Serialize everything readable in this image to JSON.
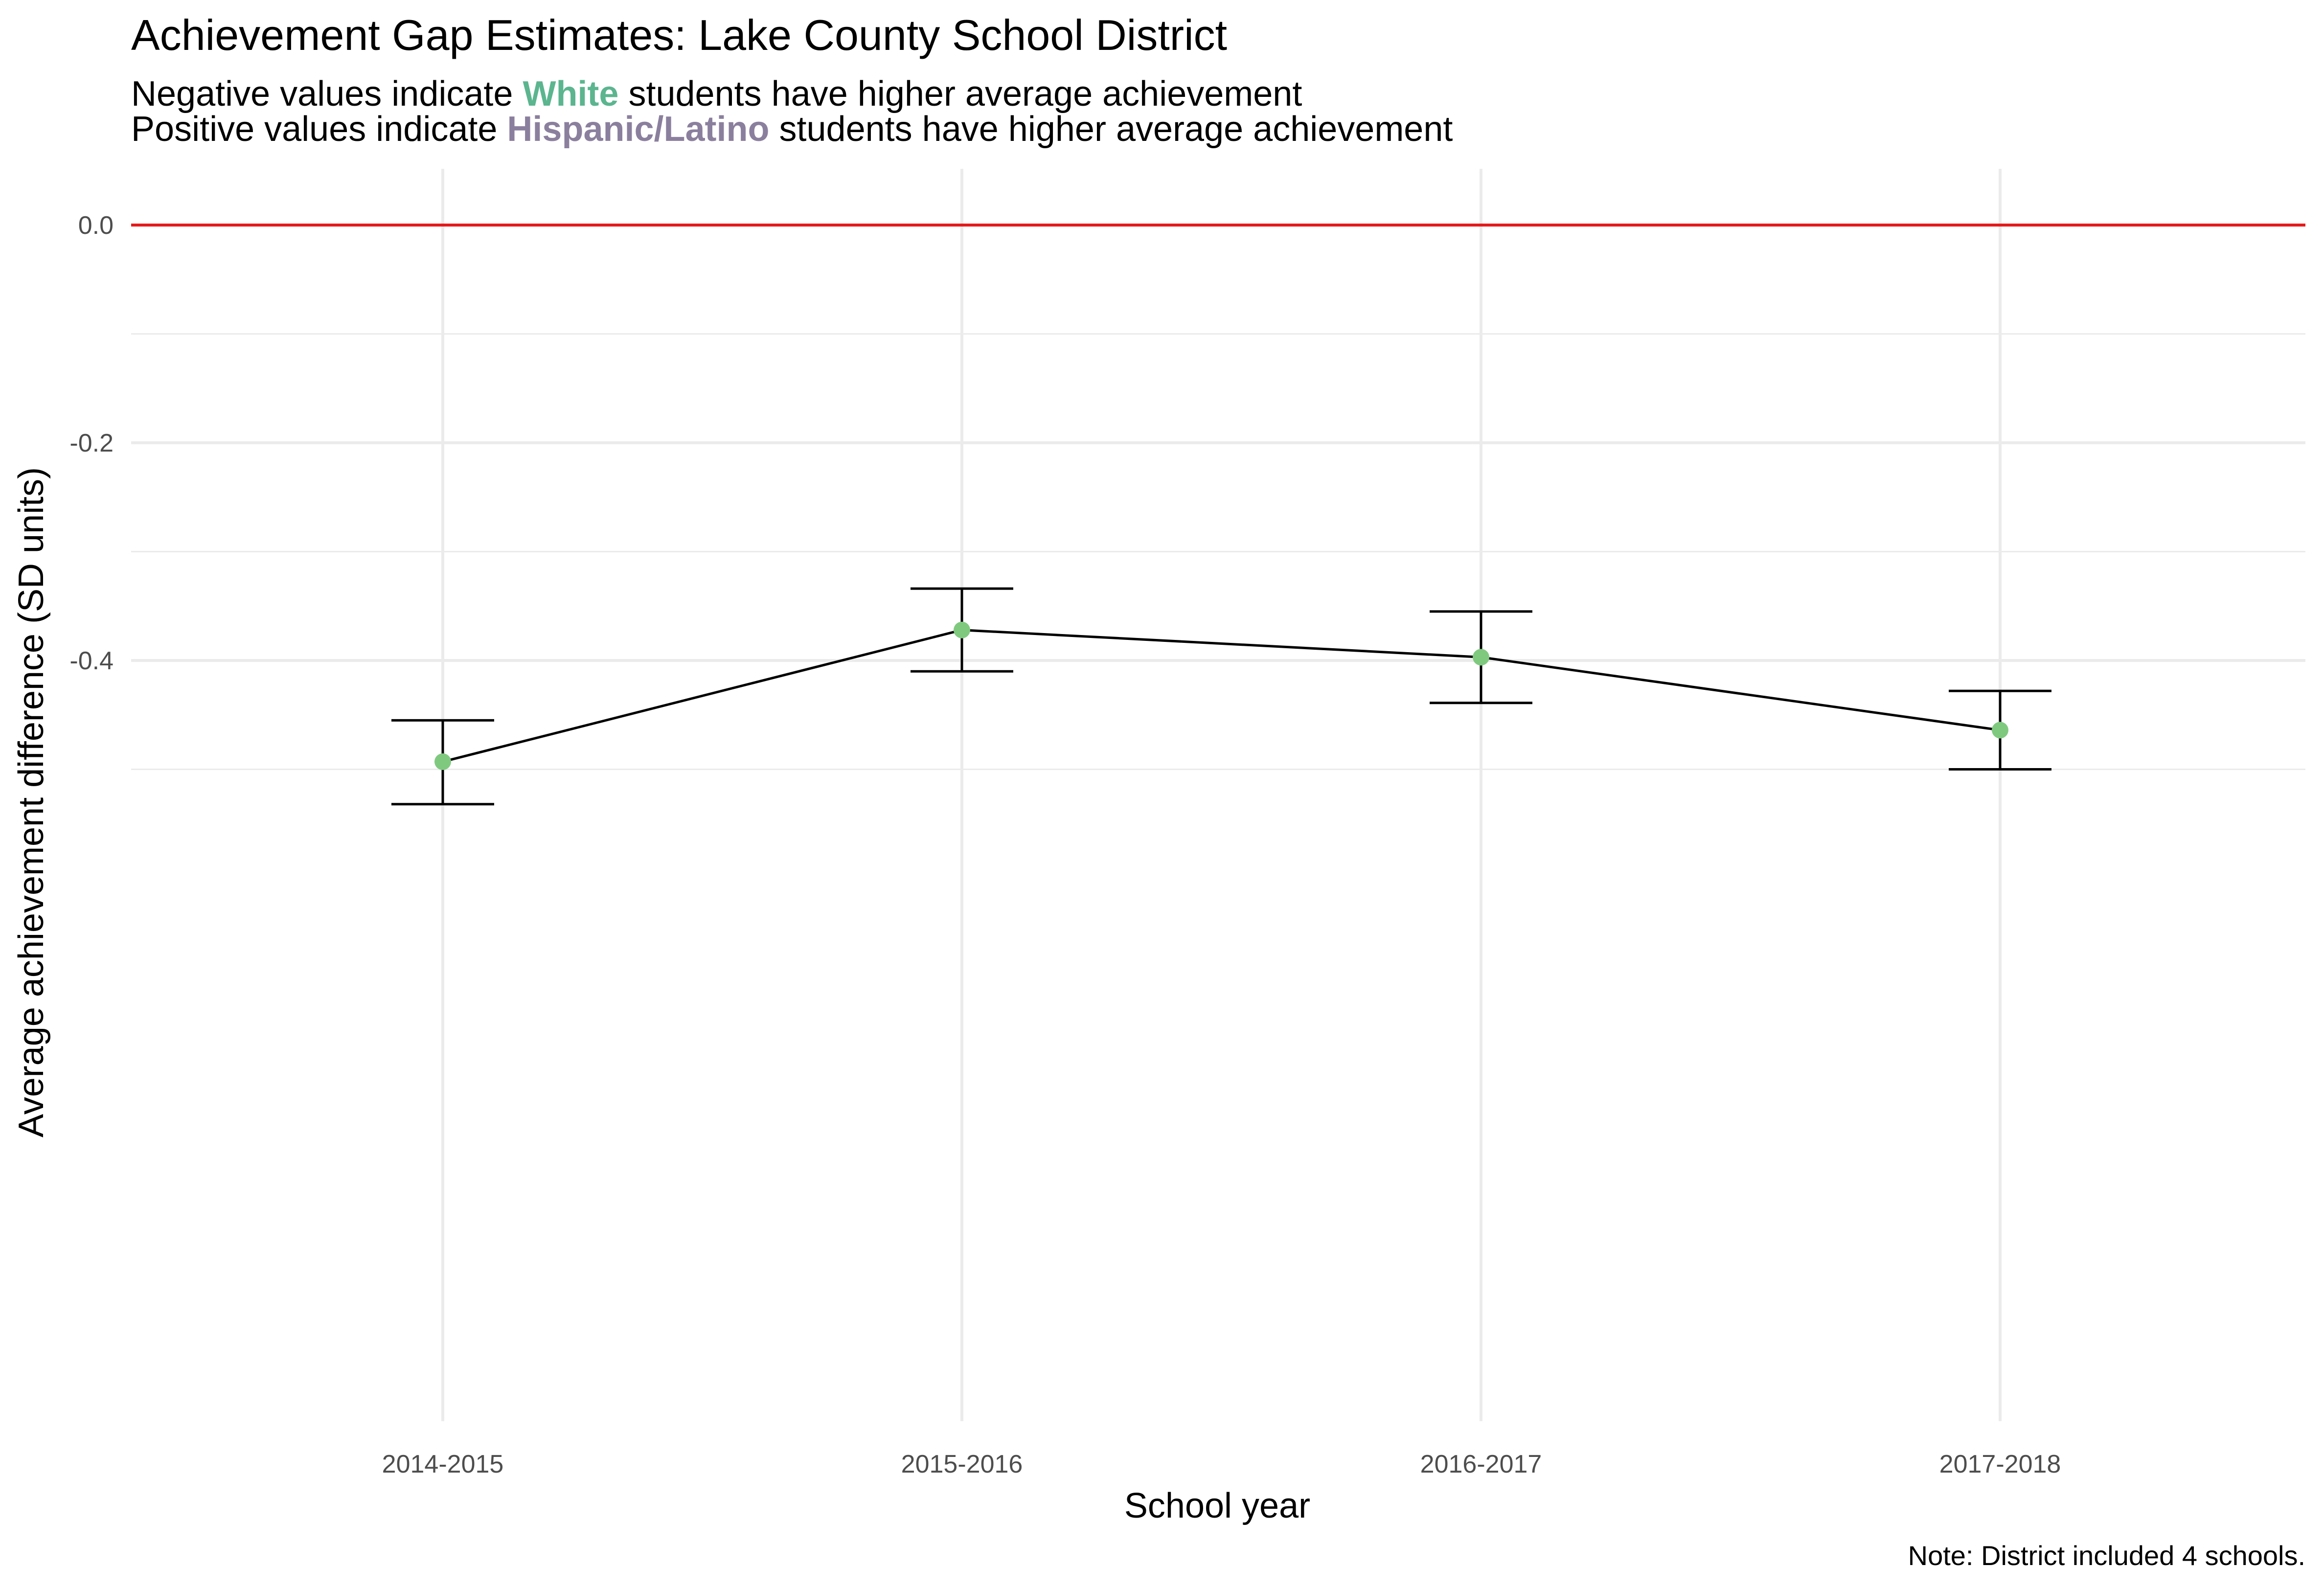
{
  "chart_data": {
    "type": "line",
    "title": "Achievement Gap Estimates: Lake County School District",
    "subtitle": {
      "line1": {
        "before": "Negative values indicate ",
        "highlight": "White",
        "after": " students have higher average achievement"
      },
      "line2": {
        "before": "Positive values indicate ",
        "highlight": "Hispanic/Latino",
        "after": " students have higher average achievement"
      }
    },
    "xlabel": "School year",
    "ylabel": "Average achievement difference (SD units)",
    "categories": [
      "2014-2015",
      "2015-2016",
      "2016-2017",
      "2017-2018"
    ],
    "series": [
      {
        "values": [
          -0.493,
          -0.372,
          -0.397,
          -0.464
        ],
        "error_lower": [
          -0.532,
          -0.41,
          -0.439,
          -0.5
        ],
        "error_upper": [
          -0.455,
          -0.334,
          -0.355,
          -0.428
        ]
      }
    ],
    "yticks": [
      0.0,
      -0.2,
      -0.4
    ],
    "ytick_labels": [
      "0.0",
      "-0.2",
      "-0.4"
    ],
    "ylim": [
      -0.555,
      0.025
    ],
    "reference_line": 0.0,
    "grid": true,
    "caption": "Note: District included 4 schools.",
    "colors": {
      "white_highlight": "#5bb58f",
      "hispanic_highlight": "#8b7f9e",
      "reference_line": "#e41a1c",
      "point": "#7fc97f",
      "line": "#000000",
      "grid": "#ebebeb"
    }
  }
}
